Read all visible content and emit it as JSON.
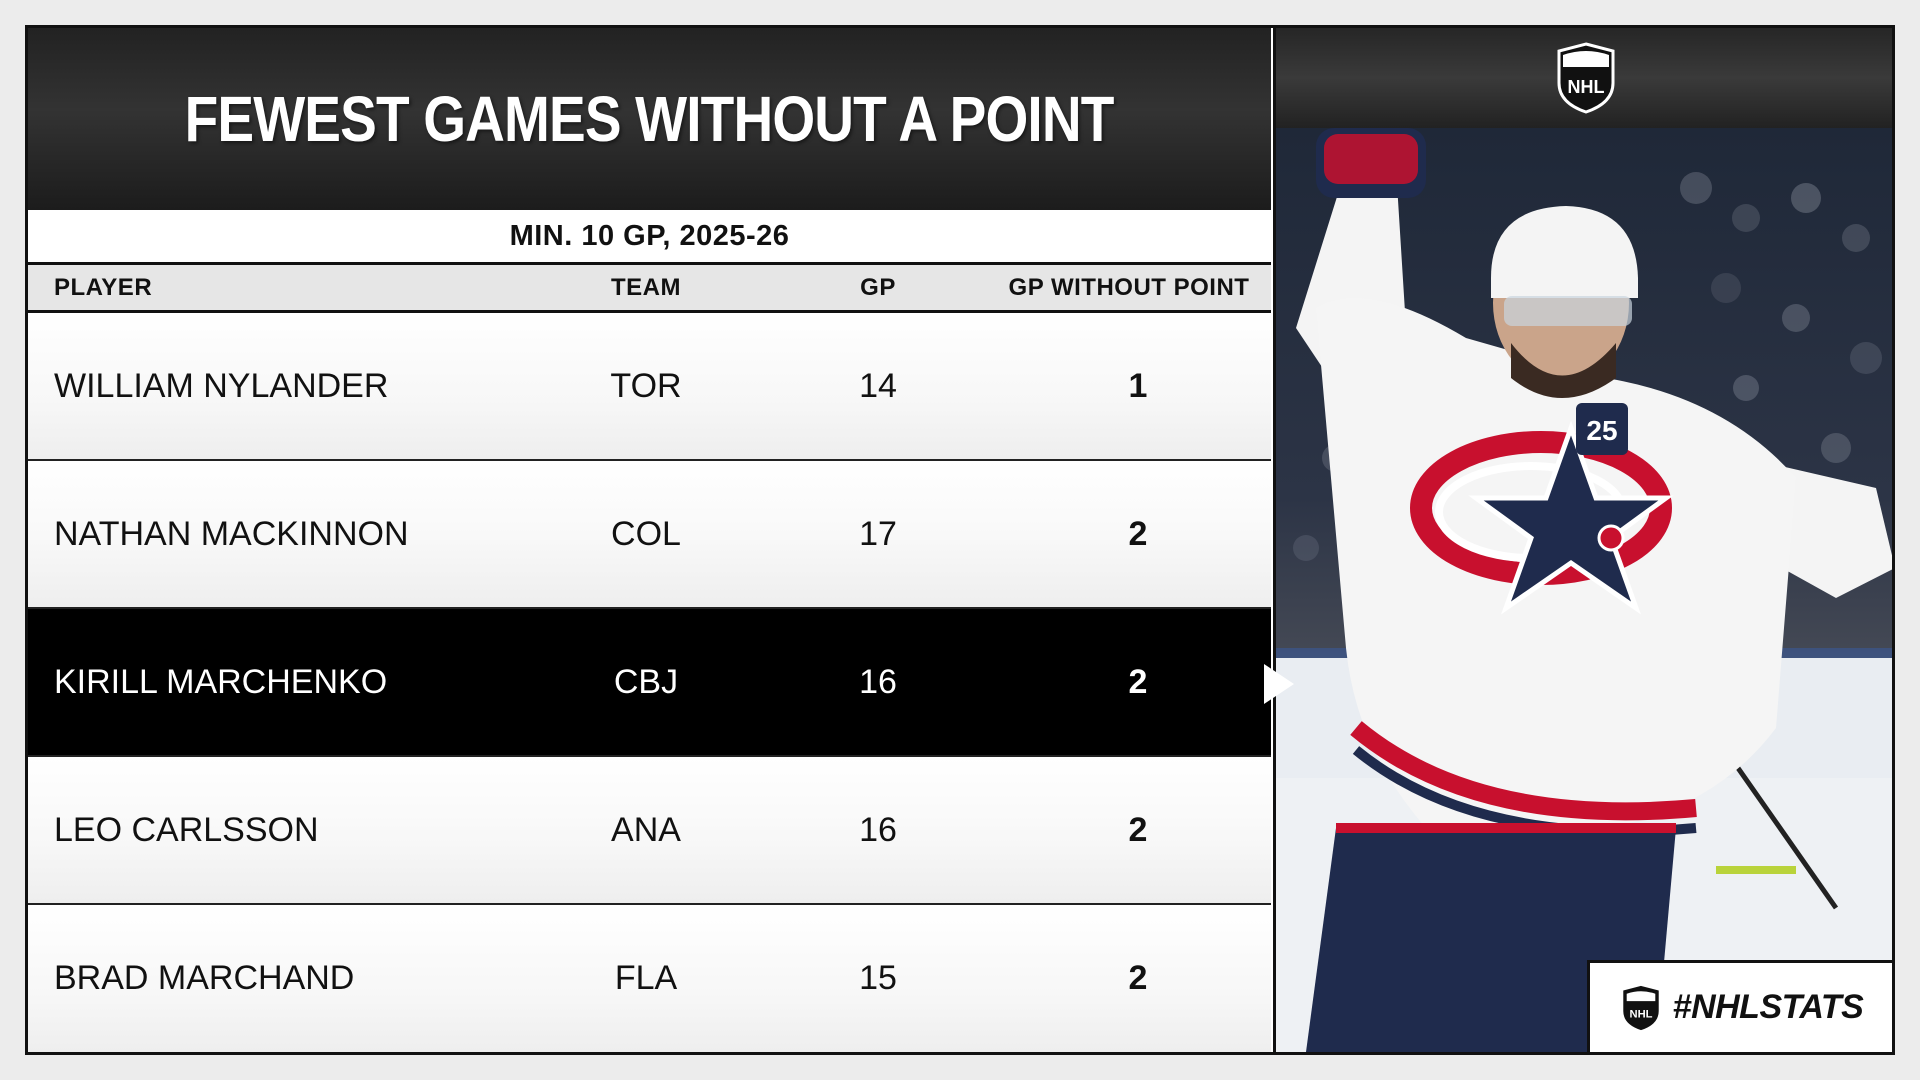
{
  "title": "FEWEST GAMES WITHOUT A POINT",
  "subtitle": "MIN. 10 GP, 2025-26",
  "columns": {
    "player": "PLAYER",
    "team": "TEAM",
    "gp": "GP",
    "gp_without_point": "GP WITHOUT POINT"
  },
  "rows": [
    {
      "player": "WILLIAM NYLANDER",
      "team": "TOR",
      "gp": "14",
      "gp_without_point": "1"
    },
    {
      "player": "NATHAN MACKINNON",
      "team": "COL",
      "gp": "17",
      "gp_without_point": "2"
    },
    {
      "player": "KIRILL MARCHENKO",
      "team": "CBJ",
      "gp": "16",
      "gp_without_point": "2"
    },
    {
      "player": "LEO CARLSSON",
      "team": "ANA",
      "gp": "16",
      "gp_without_point": "2"
    },
    {
      "player": "BRAD MARCHAND",
      "team": "FLA",
      "gp": "15",
      "gp_without_point": "2"
    }
  ],
  "highlighted_row": 2,
  "logo": {
    "text": "NHL",
    "icon": "nhl-shield-icon"
  },
  "hashtag": "#NHLSTATS",
  "photo": {
    "jersey_number": "25",
    "icon": "player-photo"
  },
  "colors": {
    "highlight": "#000000",
    "title_bg": "#2a2a2a",
    "jersey_red": "#c8102e",
    "jersey_navy": "#1f2b4d"
  }
}
